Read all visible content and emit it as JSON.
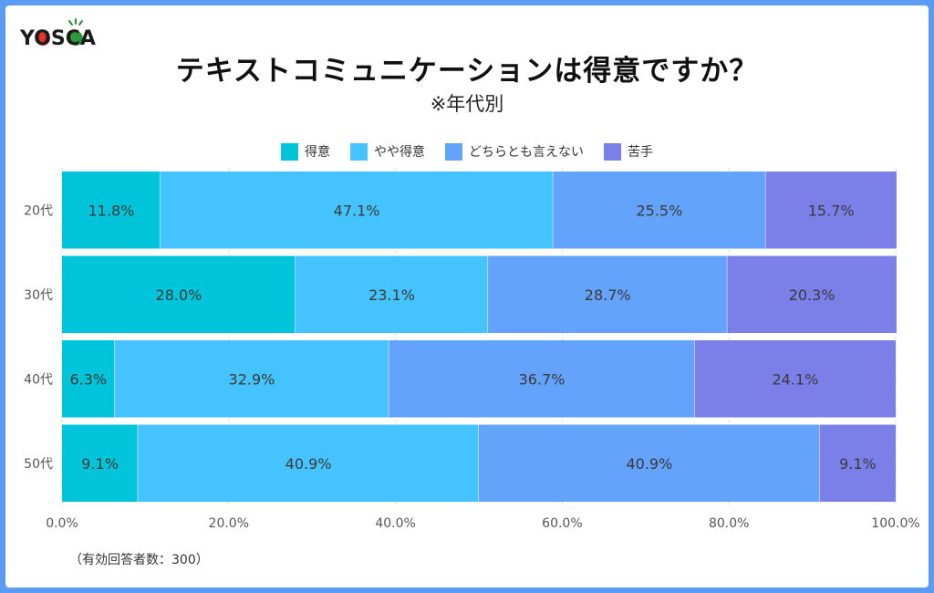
{
  "brand": {
    "logo_text": "YOSCA"
  },
  "header": {
    "title": "テキストコミュニケーションは得意ですか？",
    "subtitle": "※年代別"
  },
  "footer": {
    "note": "（有効回答者数：300）"
  },
  "chart_data": {
    "type": "bar",
    "orientation": "horizontal",
    "stacked": true,
    "categories": [
      "20代",
      "30代",
      "40代",
      "50代"
    ],
    "series": [
      {
        "name": "得意",
        "color": "#00c4d9",
        "values": [
          11.8,
          28.0,
          6.3,
          9.1
        ]
      },
      {
        "name": "やや得意",
        "color": "#45c3ff",
        "values": [
          47.1,
          23.1,
          32.9,
          40.9
        ]
      },
      {
        "name": "どちらとも言えない",
        "color": "#63a3fb",
        "values": [
          25.5,
          28.7,
          36.7,
          40.9
        ]
      },
      {
        "name": "苦手",
        "color": "#7a80e8",
        "values": [
          15.7,
          20.3,
          24.1,
          9.1
        ]
      }
    ],
    "value_format": "0.0%",
    "xlim": [
      0,
      100
    ],
    "xticks": [
      0,
      20,
      40,
      60,
      80,
      100
    ],
    "xtick_labels": [
      "0.0%",
      "20.0%",
      "40.0%",
      "60.0%",
      "80.0%",
      "100.0%"
    ],
    "legend_position": "top-center",
    "grid": true
  }
}
